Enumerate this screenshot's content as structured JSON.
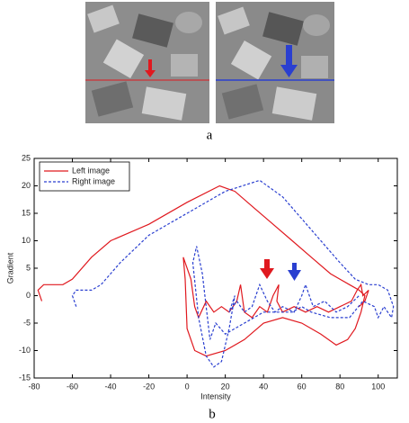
{
  "panels": {
    "top": "a",
    "bottom": "b"
  },
  "chart_data": {
    "type": "line",
    "xlabel": "Intensity",
    "ylabel": "Gradient",
    "xlim": [
      -80,
      110
    ],
    "xticks": [
      -80,
      -60,
      -40,
      -20,
      0,
      20,
      40,
      60,
      80,
      100
    ],
    "ylim": [
      -15,
      25
    ],
    "yticks": [
      -15,
      -10,
      -5,
      0,
      5,
      10,
      15,
      20,
      25
    ],
    "legend": "top-left",
    "series": [
      {
        "name": "Left image",
        "color": "#e0191f",
        "style": "solid",
        "x": [
          -76,
          -78,
          -75,
          -65,
          -60,
          -50,
          -40,
          -20,
          0,
          17,
          25,
          35,
          45,
          55,
          65,
          75,
          85,
          90,
          93,
          91,
          88,
          84,
          78,
          70,
          60,
          50,
          40,
          30,
          20,
          10,
          4,
          0,
          -1,
          -2,
          2,
          4,
          6,
          10,
          14,
          18,
          22,
          26,
          28,
          30,
          34,
          38,
          42,
          45,
          48,
          47,
          50,
          56,
          62,
          68,
          74,
          80,
          86,
          89,
          91,
          92,
          95,
          93,
          90
        ],
        "values": [
          -1,
          1,
          2,
          2,
          3,
          7,
          10,
          13,
          17,
          20,
          19,
          16,
          13,
          10,
          7,
          4,
          2,
          1,
          0,
          -3,
          -6,
          -8,
          -9,
          -7,
          -5,
          -4,
          -5,
          -8,
          -10,
          -11,
          -10,
          -6,
          3,
          7,
          3,
          -2,
          -4,
          -1,
          -3,
          -2,
          -3,
          -1,
          2,
          -3,
          -4,
          -2,
          -3,
          0,
          2,
          -1,
          -3,
          -2,
          -3,
          -2,
          -3,
          -2,
          -1,
          1,
          2,
          0,
          1,
          -1,
          -2
        ]
      },
      {
        "name": "Right image",
        "color": "#2a3fd0",
        "style": "dashed",
        "x": [
          -58,
          -60,
          -58,
          -50,
          -45,
          -35,
          -20,
          0,
          20,
          38,
          50,
          60,
          70,
          80,
          88,
          95,
          100,
          105,
          108,
          107,
          103,
          100,
          98,
          92,
          85,
          75,
          65,
          60,
          55,
          50,
          40,
          30,
          20,
          15,
          12,
          8,
          5,
          3,
          6,
          10,
          14,
          18,
          22,
          25,
          22,
          26,
          30,
          34,
          38,
          42,
          46,
          50,
          56,
          60,
          62,
          66,
          72,
          78,
          84,
          90
        ],
        "values": [
          -2,
          0,
          1,
          1,
          2,
          6,
          11,
          15,
          19,
          21,
          18,
          14,
          10,
          6,
          3,
          2,
          2,
          1,
          -2,
          -4,
          -2,
          -4,
          -2,
          -1,
          -4,
          -4,
          -3,
          -2,
          -3,
          -3,
          -3,
          -5,
          -7,
          -5,
          -8,
          4,
          9,
          6,
          -4,
          -11,
          -13,
          -12,
          -6,
          0,
          -3,
          -1,
          -3,
          -2,
          2,
          -1,
          -3,
          -2,
          -3,
          0,
          2,
          -2,
          -1,
          -3,
          -2,
          0
        ]
      }
    ]
  }
}
